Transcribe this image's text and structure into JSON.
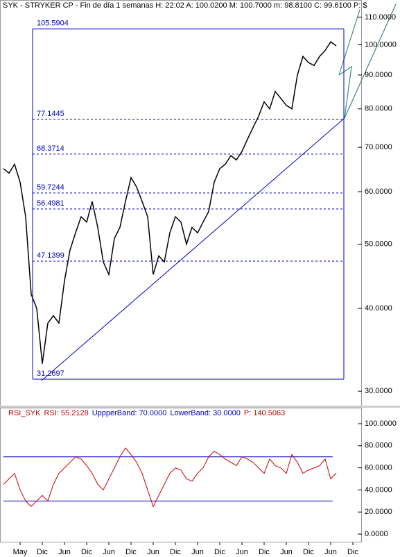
{
  "chart_data": [
    {
      "type": "line",
      "title": "SYK - STRYKER CP - Fin de día 1 semanas  H: 22:02  A: 100.0200  M: 100.7000  m: 98.8100  C: 99.6100  P: $",
      "log_scale": true,
      "color": "#000000",
      "categories": [
        null,
        null,
        "May",
        null,
        null,
        null,
        "Dic",
        null,
        null,
        null,
        "Jun",
        null,
        null,
        null,
        "Dic",
        null,
        null,
        null,
        "Jun",
        null,
        null,
        null,
        "Dic",
        null,
        null,
        null,
        "Jun",
        null,
        null,
        null,
        "Dic",
        null,
        null,
        null,
        "Jun",
        null,
        null,
        null,
        "Dic",
        null,
        null,
        null,
        "Jun",
        null,
        null,
        null,
        "Dic",
        null,
        null,
        null,
        "Jun",
        null,
        null,
        null,
        "Dic",
        null,
        null,
        null,
        "Jun",
        null,
        null,
        null,
        "Dic"
      ],
      "values": [
        65,
        64,
        66,
        62,
        55,
        42,
        40,
        33,
        38,
        39,
        38,
        44,
        49,
        52,
        55,
        54,
        58,
        53,
        47,
        45,
        51,
        53,
        58,
        63,
        61,
        58,
        55,
        45,
        48,
        47,
        52,
        55,
        54,
        50,
        53,
        52,
        54,
        56,
        62,
        65,
        66,
        68,
        67,
        69,
        72,
        75,
        78,
        82,
        80,
        85,
        83,
        81,
        80,
        90,
        96,
        94,
        93,
        96,
        98,
        101,
        99.6,
        null,
        null
      ],
      "ylim": [
        28.6,
        115.4
      ],
      "yticks": [
        {
          "value": 30,
          "label": "30.0000"
        },
        {
          "value": 40,
          "label": "40.0000"
        },
        {
          "value": 50,
          "label": "50.0000"
        },
        {
          "value": 60,
          "label": "60.0000"
        },
        {
          "value": 70,
          "label": "70.0000"
        },
        {
          "value": 80,
          "label": "80.0000"
        },
        {
          "value": 90,
          "label": "90.0000"
        },
        {
          "value": 100,
          "label": "100.0000"
        },
        {
          "value": 110,
          "label": "110.0000"
        }
      ],
      "levels": [
        {
          "value": 105.5904,
          "label": "105.5904",
          "dashed": false
        },
        {
          "value": 77.1445,
          "label": "77.1445",
          "dashed": true
        },
        {
          "value": 68.3714,
          "label": "68.3714",
          "dashed": true
        },
        {
          "value": 59.7244,
          "label": "59.7244",
          "dashed": true
        },
        {
          "value": 56.4981,
          "label": "56.4981",
          "dashed": true
        },
        {
          "value": 47.1399,
          "label": "47.1399",
          "dashed": true
        },
        {
          "value": 31.2697,
          "label": "31.2697",
          "dashed": false
        }
      ],
      "level_color": "#0000c0"
    },
    {
      "type": "line",
      "title_parts": [
        {
          "text": "RSI_SYK",
          "color": "#c00000"
        },
        {
          "text": "RSI: 55.2128",
          "color": "#c00000"
        },
        {
          "text": "UppperBand: 70.0000",
          "color": "#0000c0"
        },
        {
          "text": "LowerBand: 30.0000",
          "color": "#0000c0"
        },
        {
          "text": "P: 140.5063",
          "color": "#c00000"
        }
      ],
      "color": "#cc0000",
      "values": [
        45,
        50,
        55,
        40,
        30,
        25,
        30,
        35,
        30,
        45,
        55,
        60,
        65,
        70,
        68,
        62,
        55,
        45,
        40,
        50,
        60,
        70,
        78,
        72,
        65,
        55,
        40,
        25,
        35,
        45,
        55,
        60,
        58,
        50,
        48,
        55,
        60,
        70,
        75,
        72,
        68,
        65,
        62,
        70,
        68,
        65,
        60,
        55,
        68,
        62,
        60,
        55,
        72,
        65,
        55,
        58,
        60,
        62,
        68,
        50,
        55.2128
      ],
      "bands": [
        70,
        30
      ],
      "band_color": "#0000c0",
      "ylim": [
        -6.9,
        112.6
      ],
      "yticks": [
        {
          "value": 0,
          "label": "0.0000"
        },
        {
          "value": 20,
          "label": "20.0000"
        },
        {
          "value": 40,
          "label": "40.0000"
        },
        {
          "value": 60,
          "label": "60.0000"
        },
        {
          "value": 80,
          "label": "80.0000"
        },
        {
          "value": 100,
          "label": "100.0000"
        }
      ]
    }
  ]
}
